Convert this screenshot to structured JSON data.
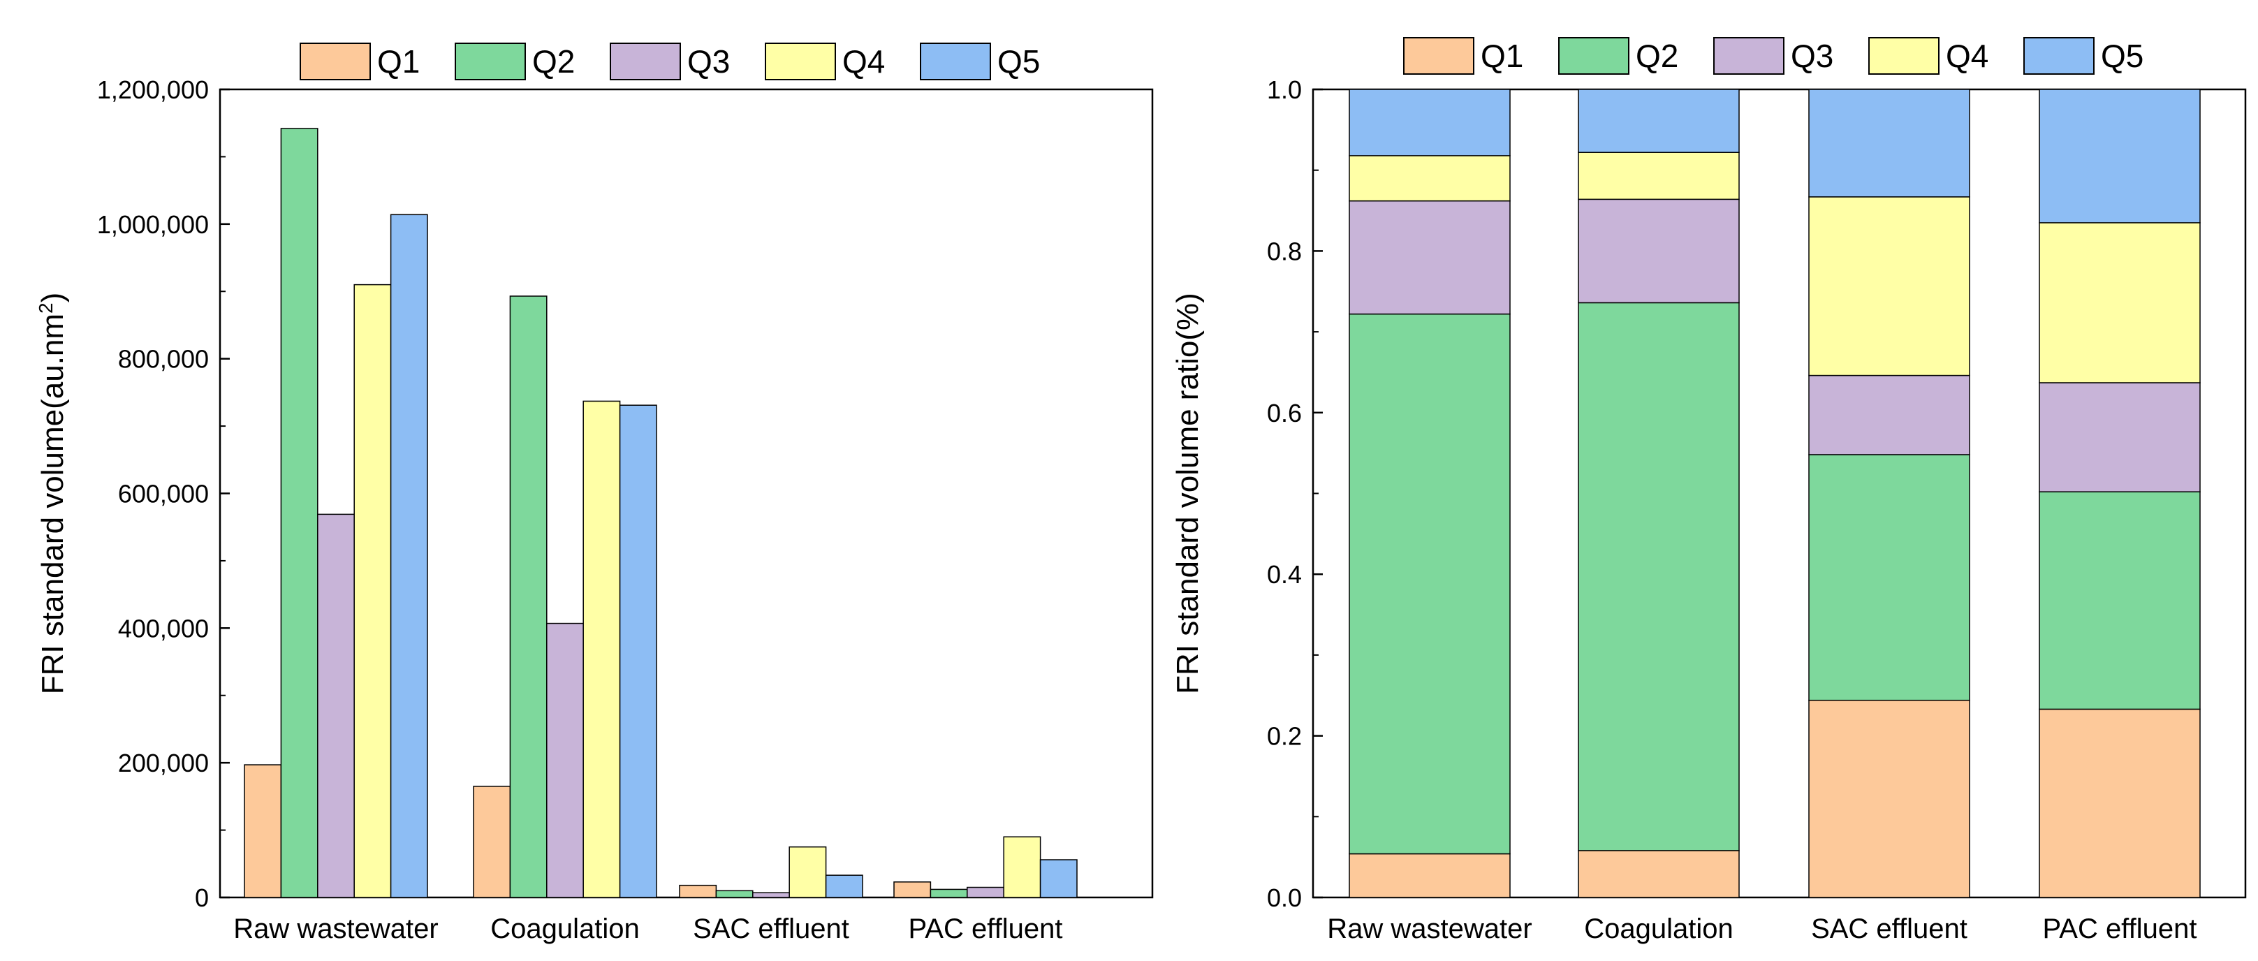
{
  "series_colors": {
    "Q1": "#FDC99A",
    "Q2": "#7ED89C",
    "Q3": "#C8B4D8",
    "Q4": "#FFFFA6",
    "Q5": "#8DBDF4"
  },
  "chart_data": [
    {
      "type": "bar",
      "title": "",
      "xlabel": "",
      "ylabel": "FRI standard volume(au.nm2)",
      "ylabel_base": "FRI standard volume(au.nm",
      "ylabel_sup": "2",
      "ylabel_end": ")",
      "ylim": [
        0,
        1200000
      ],
      "yticks": [
        0,
        200000,
        400000,
        600000,
        800000,
        1000000,
        1200000
      ],
      "ytick_labels": [
        "0",
        "200,000",
        "400,000",
        "600,000",
        "800,000",
        "1,000,000",
        "1,200,000"
      ],
      "grid": false,
      "legend_position": "top",
      "categories": [
        "Raw wastewater",
        "Coagulation",
        "SAC effluent",
        "PAC effluent"
      ],
      "series": [
        {
          "name": "Q1",
          "values": [
            197000,
            165000,
            18000,
            23000
          ]
        },
        {
          "name": "Q2",
          "values": [
            1142000,
            893000,
            10000,
            12000
          ]
        },
        {
          "name": "Q3",
          "values": [
            569000,
            407000,
            7000,
            15000
          ]
        },
        {
          "name": "Q4",
          "values": [
            910000,
            737000,
            75000,
            90000
          ]
        },
        {
          "name": "Q5",
          "values": [
            1014000,
            731000,
            33000,
            56000
          ]
        }
      ]
    },
    {
      "type": "bar",
      "stacked": true,
      "title": "",
      "xlabel": "",
      "ylabel": "FRI standard volume ratio(%)",
      "ylim": [
        0,
        1.0
      ],
      "yticks": [
        0,
        0.2,
        0.4,
        0.6,
        0.8,
        1.0
      ],
      "ytick_labels": [
        "0.0",
        "0.2",
        "0.4",
        "0.6",
        "0.8",
        "1.0"
      ],
      "grid": false,
      "legend_position": "top",
      "categories": [
        "Raw wastewater",
        "Coagulation",
        "SAC effluent",
        "PAC effluent"
      ],
      "series": [
        {
          "name": "Q1",
          "values": [
            0.054,
            0.058,
            0.244,
            0.233
          ]
        },
        {
          "name": "Q2",
          "values": [
            0.668,
            0.678,
            0.304,
            0.269
          ]
        },
        {
          "name": "Q3",
          "values": [
            0.14,
            0.128,
            0.098,
            0.135
          ]
        },
        {
          "name": "Q4",
          "values": [
            0.056,
            0.058,
            0.221,
            0.198
          ]
        },
        {
          "name": "Q5",
          "values": [
            0.082,
            0.078,
            0.133,
            0.165
          ]
        }
      ]
    }
  ]
}
